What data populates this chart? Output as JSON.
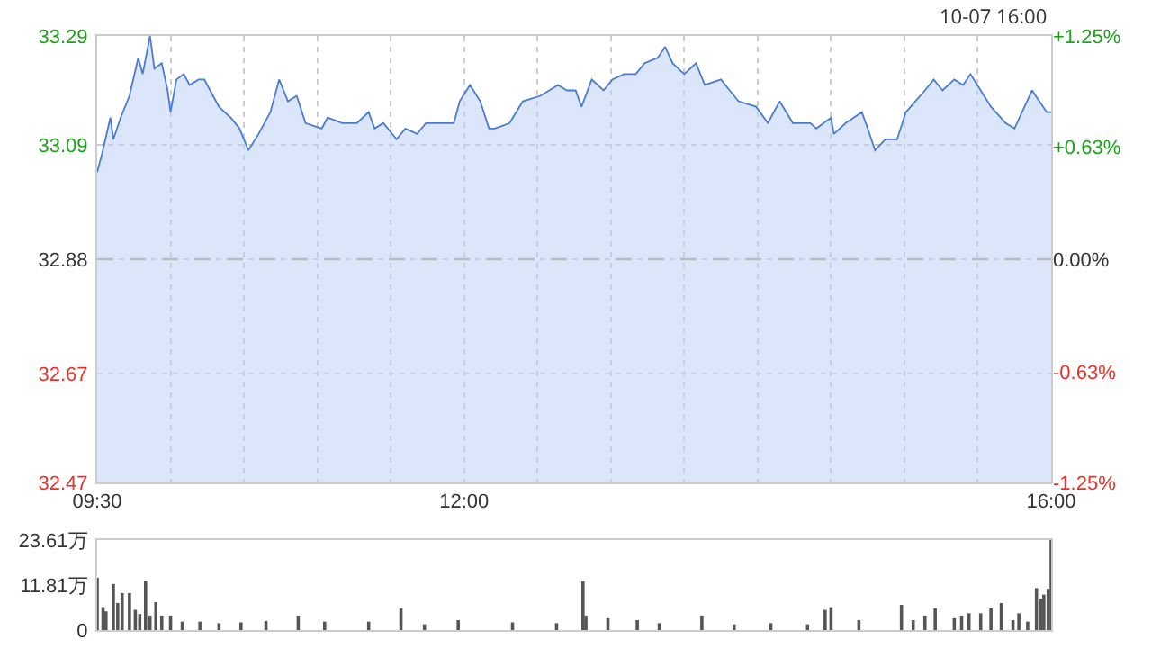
{
  "chart_data": [
    {
      "type": "area",
      "annotations": [
        "10-07 16:00"
      ],
      "x": [
        9.5,
        9.53,
        9.59,
        9.61,
        9.66,
        9.72,
        9.78,
        9.81,
        9.86,
        9.89,
        9.94,
        9.98,
        10.0,
        10.04,
        10.09,
        10.13,
        10.19,
        10.23,
        10.27,
        10.33,
        10.41,
        10.47,
        10.53,
        10.6,
        10.68,
        10.74,
        10.8,
        10.86,
        10.92,
        11.03,
        11.07,
        11.17,
        11.27,
        11.35,
        11.39,
        11.45,
        11.54,
        11.6,
        11.68,
        11.74,
        11.82,
        11.9,
        11.93,
        11.97,
        12.04,
        12.11,
        12.17,
        12.21,
        12.31,
        12.4,
        12.52,
        12.64,
        12.7,
        12.76,
        12.8,
        12.87,
        12.95,
        13.01,
        13.09,
        13.17,
        13.23,
        13.32,
        13.37,
        13.42,
        13.5,
        13.58,
        13.64,
        13.75,
        13.81,
        13.87,
        13.99,
        14.07,
        14.15,
        14.24,
        14.36,
        14.4,
        14.5,
        14.52,
        14.6,
        14.71,
        14.75,
        14.8,
        14.87,
        14.95,
        15.01,
        15.14,
        15.2,
        15.26,
        15.34,
        15.4,
        15.45,
        15.52,
        15.59,
        15.69,
        15.75,
        15.87,
        15.97,
        16.0
      ],
      "series": [
        {
          "color": "#4a7bd0",
          "values": [
            33.04,
            33.07,
            33.14,
            33.1,
            33.14,
            33.18,
            33.25,
            33.22,
            33.29,
            33.23,
            33.24,
            33.19,
            33.15,
            33.21,
            33.22,
            33.2,
            33.21,
            33.21,
            33.19,
            33.16,
            33.14,
            33.12,
            33.08,
            33.11,
            33.15,
            33.21,
            33.17,
            33.18,
            33.13,
            33.12,
            33.14,
            33.13,
            33.13,
            33.15,
            33.12,
            33.13,
            33.1,
            33.12,
            33.11,
            33.13,
            33.13,
            33.13,
            33.13,
            33.17,
            33.2,
            33.17,
            33.12,
            33.12,
            33.13,
            33.17,
            33.18,
            33.2,
            33.19,
            33.19,
            33.16,
            33.21,
            33.19,
            33.21,
            33.22,
            33.22,
            33.24,
            33.25,
            33.27,
            33.24,
            33.22,
            33.24,
            33.2,
            33.21,
            33.19,
            33.17,
            33.16,
            33.13,
            33.17,
            33.13,
            33.13,
            33.12,
            33.14,
            33.11,
            33.13,
            33.15,
            33.12,
            33.08,
            33.1,
            33.1,
            33.15,
            33.19,
            33.21,
            33.19,
            33.21,
            33.2,
            33.22,
            33.19,
            33.16,
            33.13,
            33.12,
            33.19,
            33.15,
            33.15
          ]
        }
      ],
      "xlim": [
        9.5,
        16
      ],
      "xticks": [
        {
          "value": 9.5,
          "label": "09:30"
        },
        {
          "value": 10,
          "label": null
        },
        {
          "value": 10.5,
          "label": null
        },
        {
          "value": 11,
          "label": null
        },
        {
          "value": 11.5,
          "label": null
        },
        {
          "value": 12,
          "label": "12:00"
        },
        {
          "value": 12.5,
          "label": null
        },
        {
          "value": 13,
          "label": null
        },
        {
          "value": 13.5,
          "label": null
        },
        {
          "value": 14,
          "label": null
        },
        {
          "value": 14.5,
          "label": null
        },
        {
          "value": 15,
          "label": null
        },
        {
          "value": 15.5,
          "label": null
        },
        {
          "value": 16,
          "label": "16:00"
        }
      ],
      "ylim": [
        32.47,
        33.29
      ],
      "yticks": [
        32.47,
        32.67,
        32.88,
        33.09,
        33.29
      ],
      "y2lim": [
        -1.25,
        1.25
      ],
      "y2ticks": [
        {
          "value": -1.25,
          "label": "-1.25%"
        },
        {
          "value": -0.63,
          "label": "-0.63%"
        },
        {
          "value": 0,
          "label": "0.00%"
        },
        {
          "value": 0.63,
          "label": "+0.63%"
        },
        {
          "value": 1.25,
          "label": "+1.25%"
        }
      ],
      "ref_lines": [
        {
          "axis": "y",
          "value": 32.88,
          "line_style": "dashed",
          "color": "#bbbbbb"
        }
      ],
      "grid": true,
      "line_style": "solid",
      "marker": "none"
    },
    {
      "type": "bar",
      "x": [
        9.5,
        9.54,
        9.56,
        9.61,
        9.64,
        9.67,
        9.72,
        9.76,
        9.79,
        9.83,
        9.86,
        9.9,
        9.94,
        10.0,
        10.08,
        10.2,
        10.33,
        10.48,
        10.65,
        10.87,
        11.05,
        11.35,
        11.57,
        11.73,
        11.96,
        12.33,
        12.63,
        12.81,
        12.83,
        12.98,
        13.18,
        13.33,
        13.62,
        13.84,
        14.09,
        14.34,
        14.46,
        14.5,
        14.69,
        14.98,
        15.06,
        15.14,
        15.21,
        15.34,
        15.39,
        15.44,
        15.52,
        15.59,
        15.66,
        15.74,
        15.78,
        15.84,
        15.9,
        15.93,
        15.95,
        15.98,
        16.0
      ],
      "series": [
        {
          "color": "#555555",
          "values": [
            13.7,
            6.0,
            4.9,
            12.1,
            7.1,
            9.7,
            9.7,
            5.3,
            4.2,
            12.8,
            3.8,
            7.3,
            3.8,
            3.8,
            2.2,
            2.2,
            1.8,
            2.0,
            2.4,
            3.8,
            2.2,
            2.2,
            5.7,
            1.5,
            2.6,
            2.0,
            1.8,
            12.8,
            3.8,
            3.1,
            2.6,
            1.8,
            3.8,
            1.5,
            1.8,
            1.5,
            5.3,
            6.0,
            2.6,
            6.6,
            2.6,
            3.8,
            5.7,
            3.1,
            3.8,
            4.4,
            4.4,
            5.7,
            7.1,
            2.6,
            4.4,
            2.2,
            11.0,
            8.2,
            9.3,
            10.8,
            23.6
          ]
        }
      ],
      "xlim": [
        9.5,
        16
      ],
      "ylim": [
        0,
        23.61
      ],
      "yticks": [
        0,
        {
          "value": 11.81,
          "label": "11.81万"
        },
        {
          "value": 23.61,
          "label": "23.61万"
        }
      ],
      "grid": "x"
    }
  ]
}
